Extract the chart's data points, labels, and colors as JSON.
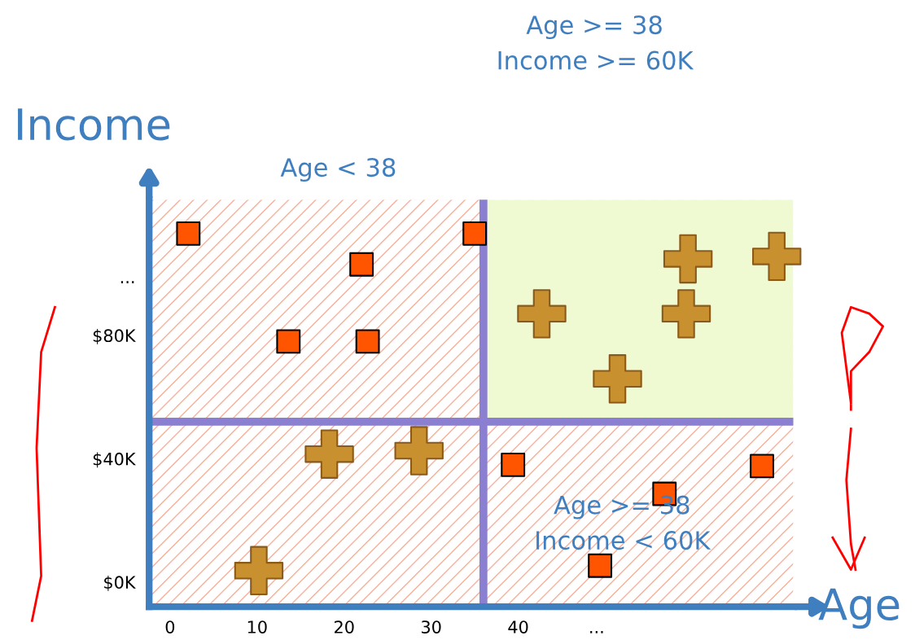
{
  "chart_data": {
    "type": "scatter",
    "xlabel": "Age",
    "ylabel": "Income",
    "xlim": [
      -2.4,
      71.6
    ],
    "ylim": [
      -8,
      124
    ],
    "xticks": [
      0,
      10,
      20,
      30,
      40,
      {
        "value": 49,
        "label": "..."
      }
    ],
    "yticks": [
      {
        "value": 0,
        "label": "$0K"
      },
      {
        "value": 40,
        "label": "$40K"
      },
      {
        "value": 80,
        "label": "$80K"
      },
      {
        "value": 99,
        "label": "..."
      }
    ],
    "grid": false,
    "legend": false,
    "series": [
      {
        "color": "#ff5500",
        "marker": "square",
        "x": [
          2.1,
          22,
          35,
          13.6,
          22.7,
          39.4,
          56.8,
          68,
          49.4
        ],
        "values": [
          113,
          103,
          113,
          78,
          78,
          38,
          28.6,
          37.6,
          5.3
        ]
      },
      {
        "color": "#c8902e",
        "marker": "cross",
        "x": [
          10.2,
          18.3,
          28.6,
          42.7,
          59.5,
          69.7,
          59.3,
          51.4
        ],
        "values": [
          3.7,
          41.5,
          42.6,
          87,
          104.8,
          105.6,
          87,
          65.9
        ]
      }
    ],
    "bands": [
      {
        "axis": "y",
        "from": 52,
        "to": 124,
        "color": "#f0fad2"
      },
      {
        "axis": "y",
        "from": -8,
        "to": 52,
        "color": "#f7b09a"
      },
      {
        "axis": "x",
        "from": -2.4,
        "to": 36,
        "color": "#f7b09a"
      }
    ],
    "ref_lines": [
      {
        "axis": "x",
        "value": 36,
        "color": "#8a7fd0"
      },
      {
        "axis": "y",
        "value": 52,
        "color": "#8a7fd0"
      }
    ],
    "annotations": [
      "Age >= 38\nIncome >= 60K",
      "Age < 38",
      "Age >= 38\nIncome < 60K"
    ]
  }
}
